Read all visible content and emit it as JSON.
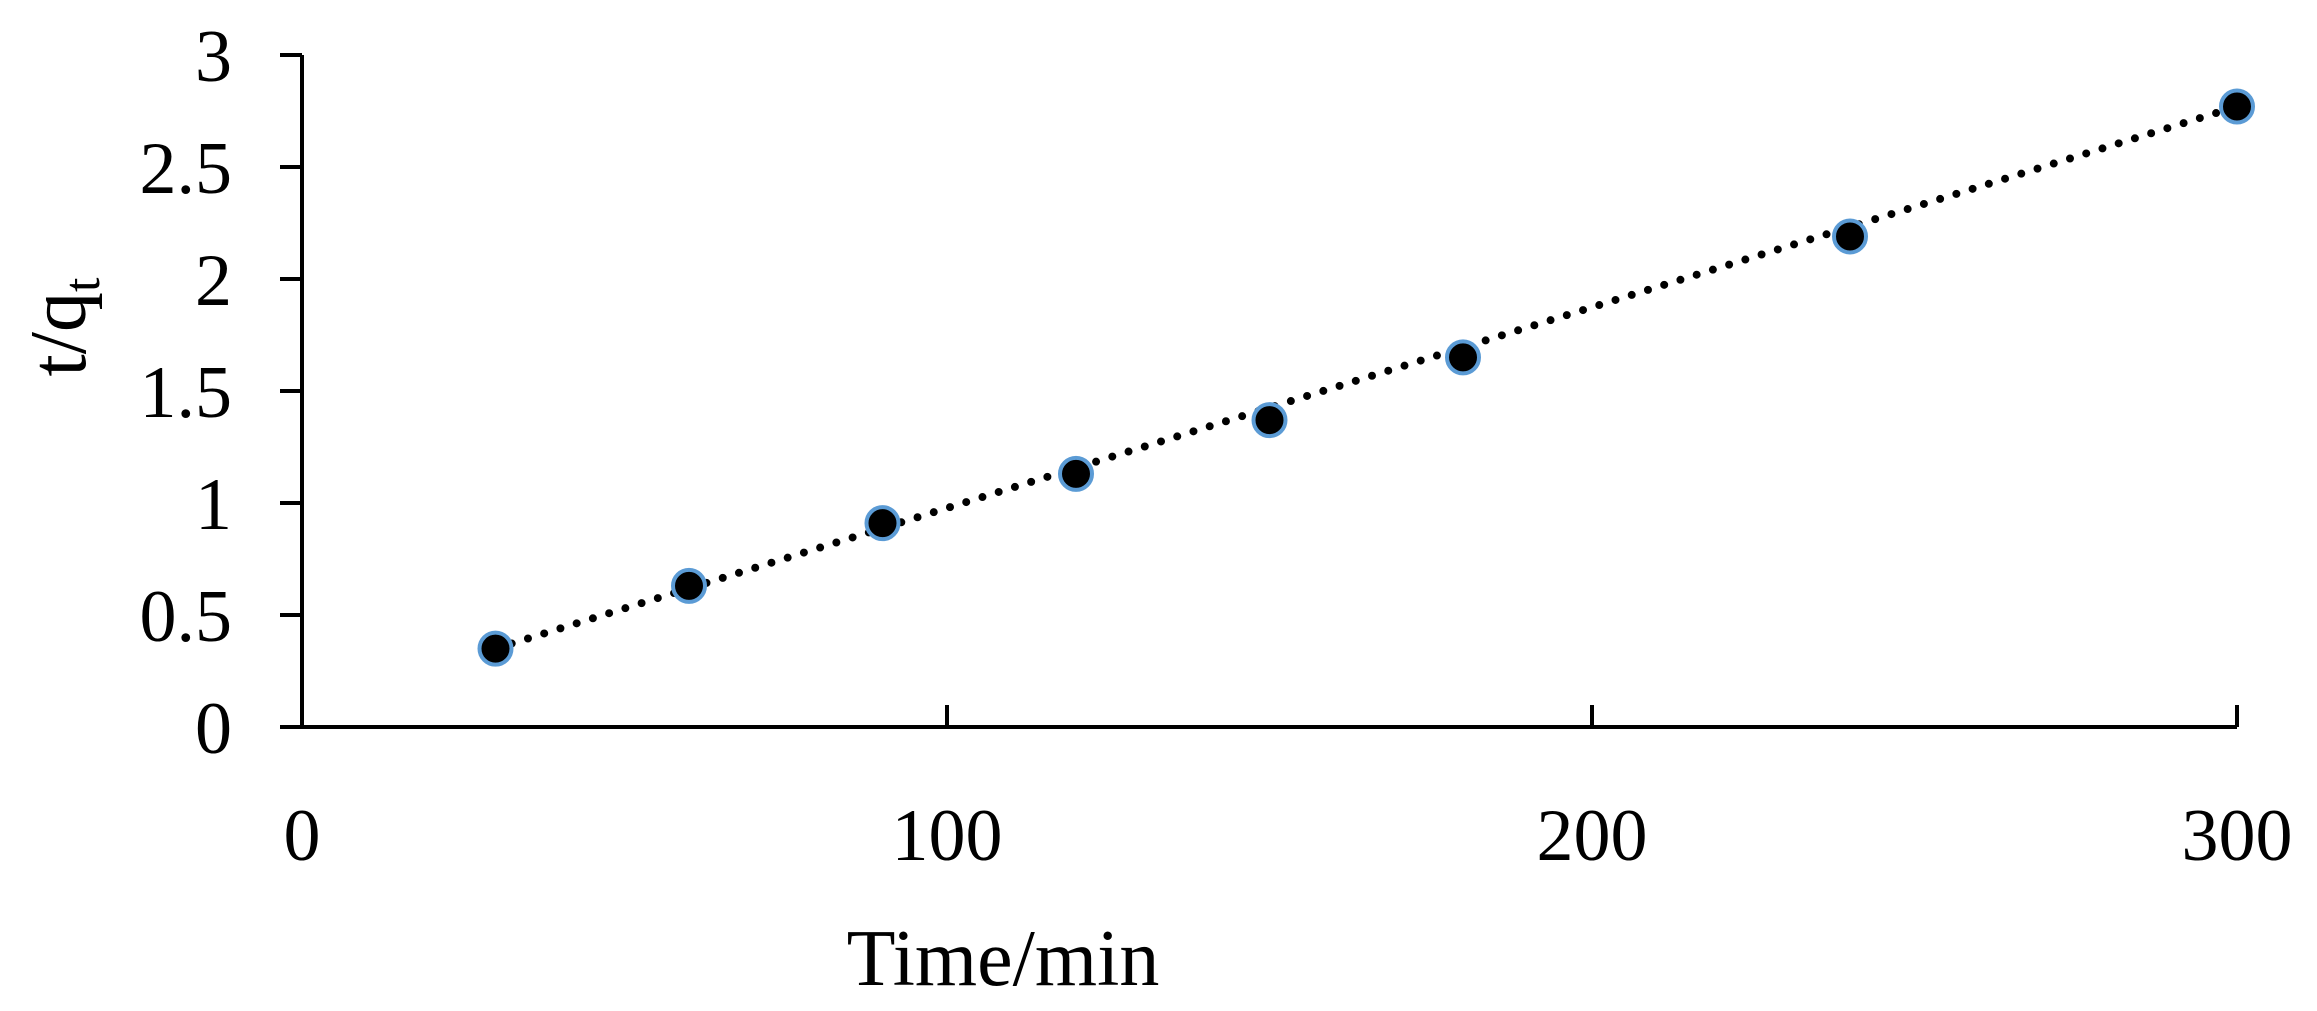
{
  "chart_data": {
    "type": "scatter",
    "title": "",
    "xlabel": "Time/min",
    "ylabel_main": "t/q",
    "ylabel_sub": "t",
    "xlim": [
      0,
      300
    ],
    "ylim": [
      0,
      3
    ],
    "x_ticks": [
      0,
      100,
      200,
      300
    ],
    "x_tick_labels": [
      "0",
      "100",
      "200",
      "300"
    ],
    "y_ticks": [
      0,
      0.5,
      1,
      1.5,
      2,
      2.5,
      3
    ],
    "y_tick_labels": [
      "0",
      "0.5",
      "1",
      "1.5",
      "2",
      "2.5",
      "3"
    ],
    "grid": false,
    "legend": "none",
    "series": [
      {
        "marker": "circle",
        "color": "#000000",
        "edge_color": "#5b9bd5",
        "x": [
          30,
          60,
          90,
          120,
          150,
          180,
          240,
          300
        ],
        "y": [
          0.35,
          0.63,
          0.91,
          1.13,
          1.37,
          1.65,
          2.19,
          2.77
        ]
      }
    ],
    "trendline": {
      "style": "dotted",
      "color": "#000000",
      "x": [
        30,
        300
      ],
      "y": [
        0.35,
        2.77
      ]
    }
  }
}
